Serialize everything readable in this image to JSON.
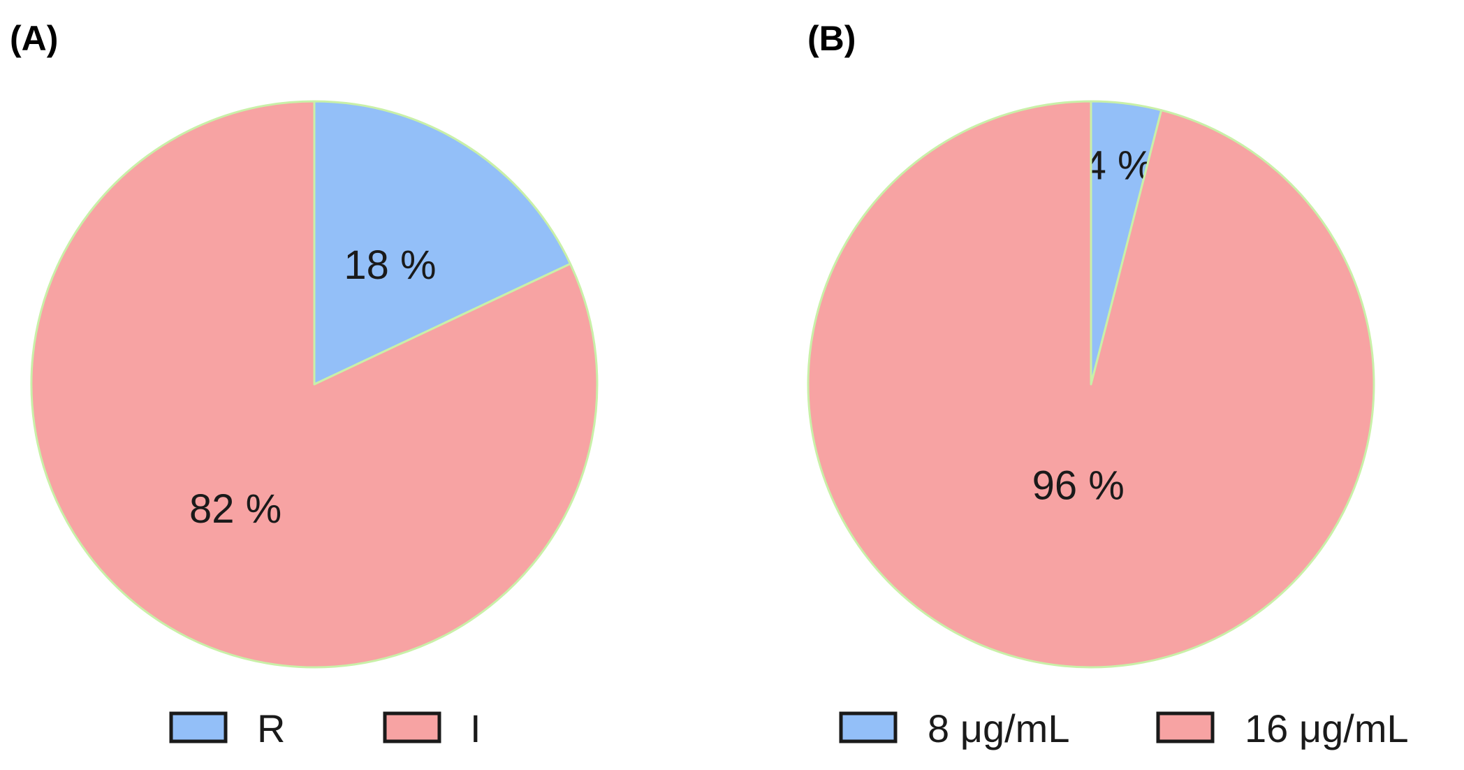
{
  "chart_data": [
    {
      "type": "pie",
      "panel_label": "(A)",
      "categories": [
        "R",
        "I"
      ],
      "values": [
        18,
        82
      ],
      "data_labels": [
        "18 %",
        "82 %"
      ],
      "colors": [
        "#93bff8",
        "#f7a3a3"
      ],
      "slice_border_color": "#c9f0a8",
      "start_angle": "12 o'clock",
      "direction": "clockwise",
      "legend": {
        "placement": "bottom",
        "entries": [
          "R",
          "I"
        ]
      }
    },
    {
      "type": "pie",
      "panel_label": "(B)",
      "categories": [
        "8 μg/mL",
        "16 μg/mL"
      ],
      "values": [
        4,
        96
      ],
      "data_labels": [
        "4 %",
        "96 %"
      ],
      "colors": [
        "#93bff8",
        "#f7a3a3"
      ],
      "slice_border_color": "#c9f0a8",
      "start_angle": "12 o'clock",
      "direction": "clockwise",
      "legend": {
        "placement": "bottom",
        "entries": [
          "8 μg/mL",
          "16 μg/mL"
        ]
      }
    }
  ]
}
